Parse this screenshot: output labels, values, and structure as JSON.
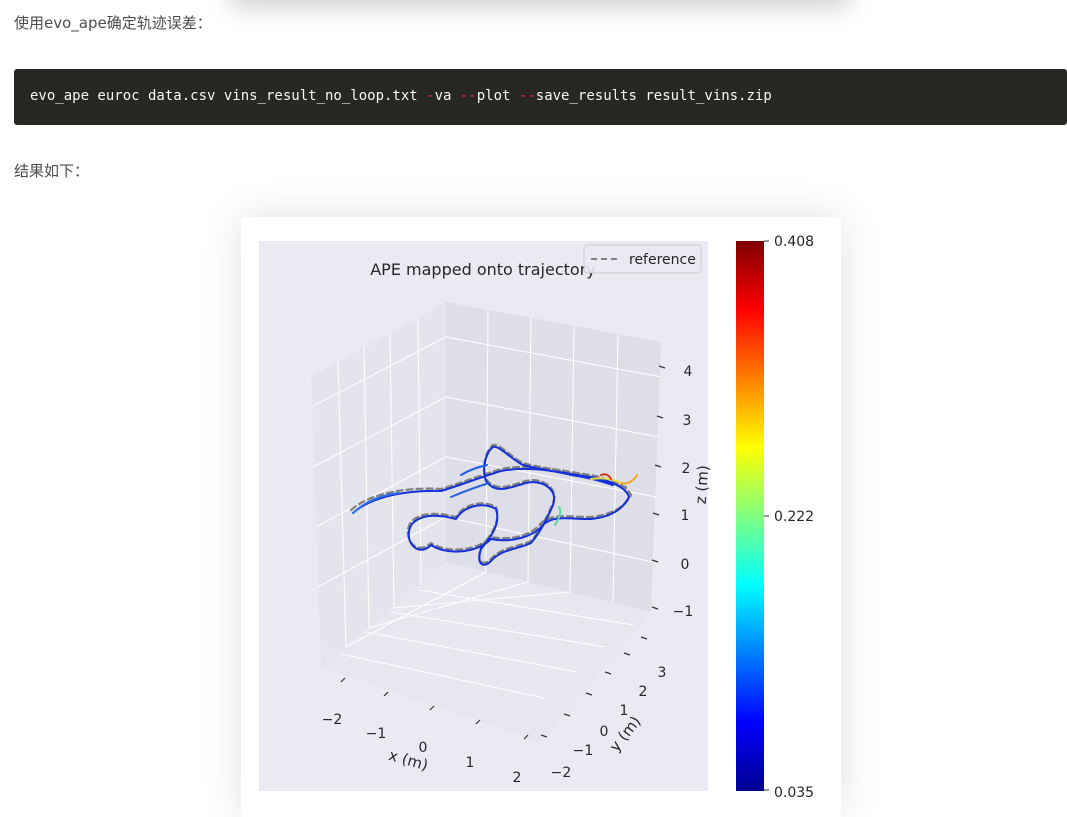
{
  "article": {
    "intro_text": "使用evo_ape确定轨迹误差：",
    "code": {
      "cmd": "evo_ape euroc data.csv vins_result_no_loop.txt ",
      "flag_va_dash": "-",
      "flag_va": "va ",
      "flag_plot_dash": "--",
      "flag_plot": "plot ",
      "flag_save_dash": "--",
      "flag_save": "save_results result_vins.zip"
    },
    "result_text": "结果如下："
  },
  "chart_data": {
    "type": "line",
    "title": "APE mapped onto trajectory",
    "legend": {
      "entries": [
        "reference"
      ],
      "placement": "top-right",
      "style": "dashed-gray"
    },
    "axes": {
      "x": {
        "label": "x (m)",
        "ticks": [
          -2,
          -1,
          0,
          1,
          2
        ]
      },
      "y": {
        "label": "y (m)",
        "ticks": [
          -2,
          -1,
          0,
          1,
          2,
          3
        ]
      },
      "z": {
        "label": "z (m)",
        "ticks": [
          -1,
          0,
          1,
          2,
          3,
          4
        ]
      }
    },
    "colorbar": {
      "colormap": "jet",
      "min_label": "0.035",
      "mid_label": "0.222",
      "max_label": "0.408",
      "min": 0.035,
      "mid": 0.222,
      "max": 0.408
    },
    "grid": true,
    "colors": {
      "pane_bg": "#eaeaf2",
      "grid": "#ffffff",
      "reference": "#808080",
      "error_low": "#00008f",
      "error_high": "#7f0000"
    }
  }
}
